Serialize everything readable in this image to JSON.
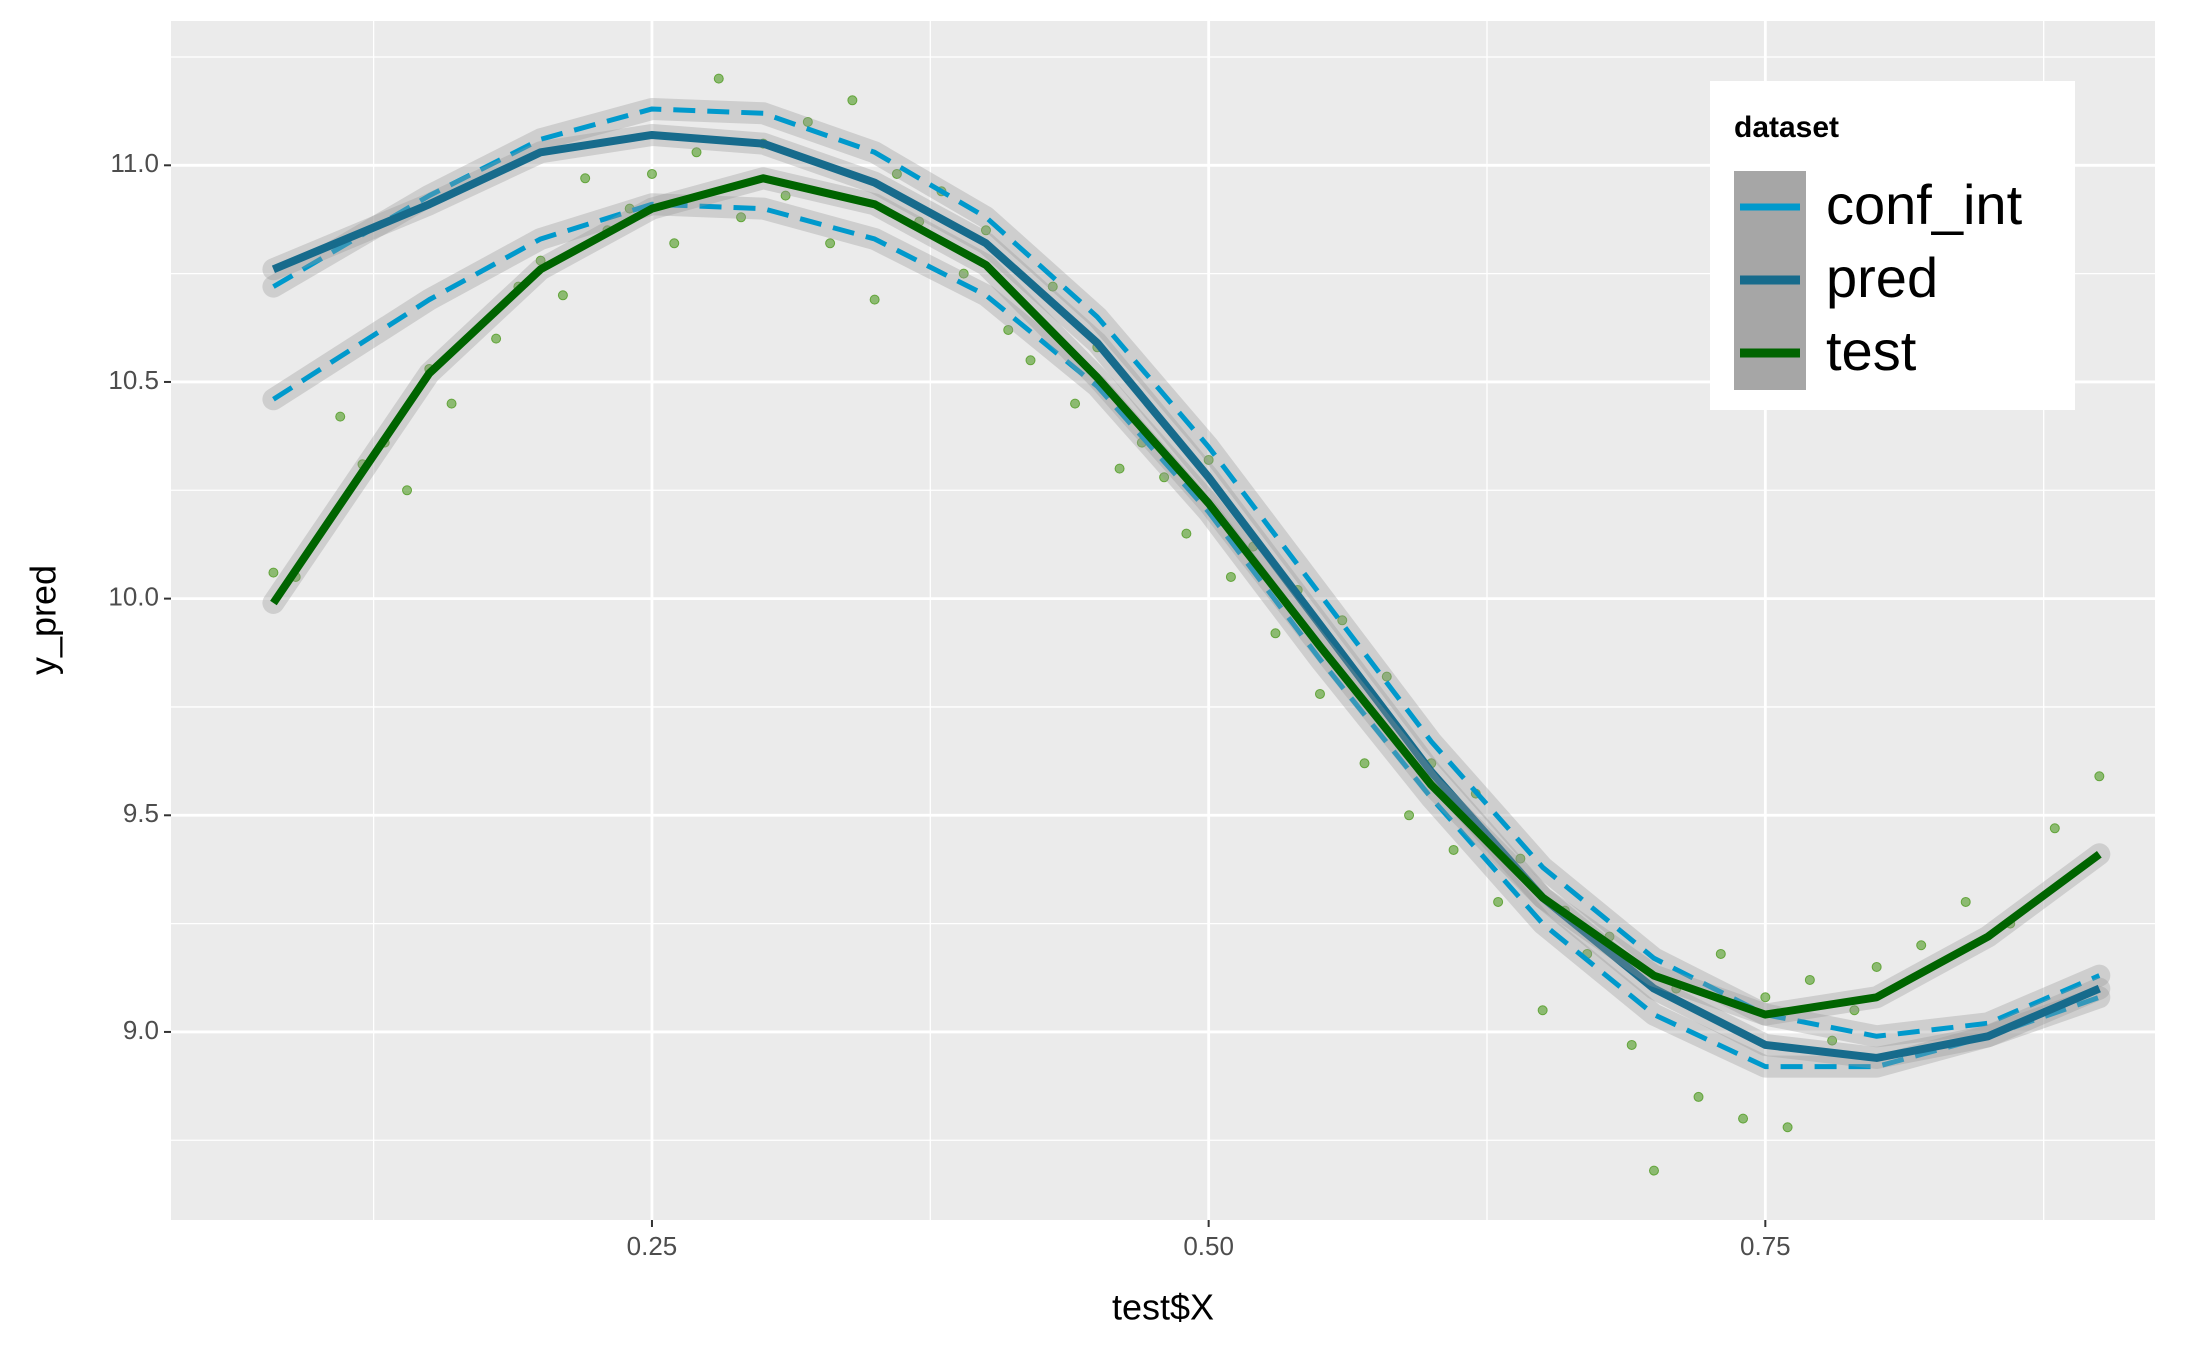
{
  "chart_data": {
    "type": "line",
    "xlabel": "test$X",
    "ylabel": "y_pred",
    "xlim": [
      0.034,
      0.925
    ],
    "ylim": [
      8.566,
      11.333
    ],
    "xticks": [
      0.25,
      {
        "value": 0.5,
        "label": "0.50"
      },
      0.75
    ],
    "yticks": [
      {
        "value": 9,
        "label": "9.0"
      },
      9.5,
      {
        "value": 10,
        "label": "10.0"
      },
      10.5,
      {
        "value": 11,
        "label": "11.0"
      }
    ],
    "grid": true,
    "legend": {
      "title": "dataset",
      "position": "top-right"
    },
    "x": [
      0.08,
      0.15,
      0.2,
      0.25,
      0.3,
      0.35,
      0.4,
      0.45,
      0.5,
      0.55,
      0.6,
      0.65,
      0.7,
      0.75,
      0.8,
      0.85,
      0.9
    ],
    "series": [
      {
        "name": "conf_int",
        "color": "#0099cc",
        "dashed": true,
        "values": [
          10.72,
          10.93,
          11.06,
          11.13,
          11.12,
          11.03,
          10.88,
          10.65,
          10.35,
          10.01,
          9.67,
          9.38,
          9.17,
          9.04,
          8.99,
          9.02,
          9.13
        ]
      },
      {
        "name": "conf_int",
        "color": "#0099cc",
        "dashed": true,
        "values": [
          10.46,
          10.69,
          10.83,
          10.91,
          10.9,
          10.83,
          10.7,
          10.49,
          10.2,
          9.86,
          9.54,
          9.25,
          9.04,
          8.92,
          8.92,
          8.99,
          9.08
        ]
      },
      {
        "name": "pred",
        "color": "#176b8c",
        "dashed": false,
        "values": [
          10.76,
          10.91,
          11.03,
          11.07,
          11.05,
          10.96,
          10.82,
          10.59,
          10.28,
          9.94,
          9.6,
          9.31,
          9.1,
          8.97,
          8.94,
          8.99,
          9.1
        ]
      },
      {
        "name": "test",
        "color": "#006400",
        "dashed": false,
        "values": [
          9.99,
          10.52,
          10.76,
          10.9,
          10.97,
          10.91,
          10.77,
          10.51,
          10.22,
          9.89,
          9.57,
          9.31,
          9.13,
          9.04,
          9.08,
          9.22,
          9.41
        ]
      }
    ],
    "points": {
      "color": "#4d9a1f",
      "x": [
        0.08,
        0.09,
        0.11,
        0.12,
        0.13,
        0.14,
        0.15,
        0.16,
        0.18,
        0.19,
        0.2,
        0.21,
        0.22,
        0.23,
        0.24,
        0.25,
        0.26,
        0.27,
        0.28,
        0.29,
        0.3,
        0.31,
        0.32,
        0.33,
        0.34,
        0.35,
        0.36,
        0.37,
        0.38,
        0.39,
        0.4,
        0.41,
        0.42,
        0.43,
        0.44,
        0.45,
        0.46,
        0.47,
        0.48,
        0.49,
        0.5,
        0.51,
        0.52,
        0.53,
        0.54,
        0.55,
        0.56,
        0.57,
        0.58,
        0.59,
        0.6,
        0.61,
        0.62,
        0.63,
        0.64,
        0.65,
        0.66,
        0.67,
        0.68,
        0.69,
        0.7,
        0.71,
        0.72,
        0.73,
        0.74,
        0.75,
        0.76,
        0.77,
        0.78,
        0.79,
        0.8,
        0.82,
        0.84,
        0.86,
        0.88,
        0.9
      ],
      "y": [
        10.06,
        10.05,
        10.42,
        10.31,
        10.36,
        10.25,
        10.53,
        10.45,
        10.6,
        10.72,
        10.78,
        10.7,
        10.97,
        10.85,
        10.9,
        10.98,
        10.82,
        11.03,
        11.2,
        10.88,
        11.05,
        10.93,
        11.1,
        10.82,
        11.15,
        10.69,
        10.98,
        10.87,
        10.94,
        10.75,
        10.85,
        10.62,
        10.55,
        10.72,
        10.45,
        10.58,
        10.3,
        10.36,
        10.28,
        10.15,
        10.32,
        10.05,
        10.12,
        9.92,
        10.02,
        9.78,
        9.95,
        9.62,
        9.82,
        9.5,
        9.62,
        9.42,
        9.55,
        9.3,
        9.4,
        9.05,
        9.28,
        9.18,
        9.22,
        8.97,
        8.68,
        9.1,
        8.85,
        9.18,
        8.8,
        9.08,
        8.78,
        9.12,
        8.98,
        9.05,
        9.15,
        9.2,
        9.3,
        9.25,
        9.47,
        9.59
      ]
    }
  }
}
